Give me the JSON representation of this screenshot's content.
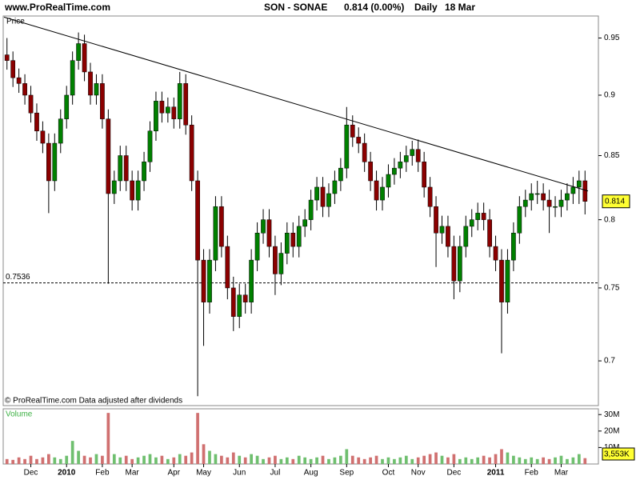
{
  "chart_data": {
    "type": "candlestick",
    "site": "www.ProRealTime.com",
    "title": "SON - SONAE",
    "quote": "0.814 (0.00%)",
    "period": "Daily",
    "date": "18 Mar",
    "panel_label": "Price",
    "footnote": "© ProRealTime.com  Data adjusted after dividends",
    "log_scale": true,
    "up_color": "#008000",
    "down_color": "#8b0000",
    "categories": [
      null,
      null,
      null,
      null,
      "Dec",
      null,
      null,
      null,
      null,
      null,
      "2010",
      null,
      null,
      null,
      null,
      null,
      "Feb",
      null,
      null,
      null,
      null,
      "Mar",
      null,
      null,
      null,
      null,
      null,
      null,
      "Apr",
      null,
      null,
      null,
      null,
      "May",
      null,
      null,
      null,
      null,
      null,
      "Jun",
      null,
      null,
      null,
      null,
      null,
      "Jul",
      null,
      null,
      null,
      null,
      null,
      "Aug",
      null,
      null,
      null,
      null,
      null,
      "Sep",
      null,
      null,
      null,
      null,
      null,
      null,
      "Oct",
      null,
      null,
      null,
      null,
      "Nov",
      null,
      null,
      null,
      null,
      null,
      "Dec",
      null,
      null,
      null,
      null,
      null,
      null,
      "2011",
      null,
      null,
      null,
      null,
      null,
      "Feb",
      null,
      null,
      null,
      null,
      "Mar",
      null,
      null,
      null,
      null
    ],
    "open": [
      0.935,
      0.93,
      0.915,
      0.91,
      0.9,
      0.885,
      0.87,
      0.86,
      0.83,
      0.86,
      0.88,
      0.9,
      0.93,
      0.945,
      0.92,
      0.9,
      0.91,
      0.88,
      0.82,
      0.83,
      0.85,
      0.83,
      0.815,
      0.83,
      0.845,
      0.87,
      0.895,
      0.885,
      0.89,
      0.88,
      0.91,
      0.875,
      0.83,
      0.77,
      0.74,
      0.77,
      0.81,
      0.78,
      0.75,
      0.73,
      0.745,
      0.74,
      0.77,
      0.79,
      0.8,
      0.78,
      0.76,
      0.775,
      0.79,
      0.78,
      0.795,
      0.8,
      0.815,
      0.825,
      0.81,
      0.82,
      0.83,
      0.84,
      0.875,
      0.865,
      0.86,
      0.845,
      0.83,
      0.815,
      0.825,
      0.835,
      0.84,
      0.845,
      0.85,
      0.855,
      0.845,
      0.825,
      0.81,
      0.79,
      0.795,
      0.78,
      0.755,
      0.78,
      0.795,
      0.8,
      0.805,
      0.8,
      0.78,
      0.77,
      0.74,
      0.77,
      0.79,
      0.81,
      0.815,
      0.82,
      0.82,
      0.815,
      0.81,
      0.81,
      0.815,
      0.82,
      0.825,
      0.83
    ],
    "high": [
      0.95,
      0.938,
      0.923,
      0.918,
      0.908,
      0.893,
      0.878,
      0.868,
      0.868,
      0.888,
      0.908,
      0.938,
      0.955,
      0.953,
      0.928,
      0.918,
      0.918,
      0.888,
      0.838,
      0.858,
      0.858,
      0.838,
      0.838,
      0.853,
      0.878,
      0.903,
      0.903,
      0.898,
      0.898,
      0.92,
      0.918,
      0.883,
      0.838,
      0.778,
      0.778,
      0.818,
      0.818,
      0.788,
      0.758,
      0.753,
      0.753,
      0.778,
      0.798,
      0.808,
      0.808,
      0.788,
      0.783,
      0.798,
      0.798,
      0.803,
      0.808,
      0.823,
      0.833,
      0.833,
      0.828,
      0.838,
      0.848,
      0.89,
      0.883,
      0.873,
      0.868,
      0.853,
      0.838,
      0.833,
      0.843,
      0.848,
      0.853,
      0.858,
      0.862,
      0.863,
      0.853,
      0.833,
      0.818,
      0.803,
      0.803,
      0.788,
      0.788,
      0.803,
      0.808,
      0.813,
      0.813,
      0.808,
      0.788,
      0.778,
      0.778,
      0.798,
      0.818,
      0.823,
      0.828,
      0.83,
      0.828,
      0.823,
      0.818,
      0.823,
      0.828,
      0.833,
      0.838,
      0.838
    ],
    "low": [
      0.922,
      0.907,
      0.902,
      0.892,
      0.877,
      0.862,
      0.852,
      0.805,
      0.822,
      0.852,
      0.872,
      0.892,
      0.922,
      0.912,
      0.892,
      0.892,
      0.872,
      0.753,
      0.812,
      0.822,
      0.822,
      0.807,
      0.807,
      0.822,
      0.837,
      0.862,
      0.877,
      0.877,
      0.872,
      0.872,
      0.867,
      0.822,
      0.677,
      0.71,
      0.732,
      0.762,
      0.772,
      0.742,
      0.72,
      0.722,
      0.732,
      0.732,
      0.762,
      0.782,
      0.772,
      0.745,
      0.752,
      0.767,
      0.772,
      0.772,
      0.787,
      0.792,
      0.807,
      0.802,
      0.802,
      0.812,
      0.822,
      0.832,
      0.857,
      0.852,
      0.837,
      0.822,
      0.807,
      0.807,
      0.817,
      0.827,
      0.832,
      0.837,
      0.842,
      0.837,
      0.817,
      0.802,
      0.765,
      0.782,
      0.772,
      0.742,
      0.747,
      0.772,
      0.787,
      0.792,
      0.792,
      0.772,
      0.762,
      0.705,
      0.732,
      0.762,
      0.782,
      0.802,
      0.807,
      0.812,
      0.807,
      0.79,
      0.802,
      0.802,
      0.807,
      0.812,
      0.812,
      0.804
    ],
    "close": [
      0.93,
      0.915,
      0.91,
      0.9,
      0.885,
      0.87,
      0.86,
      0.83,
      0.86,
      0.88,
      0.9,
      0.93,
      0.945,
      0.92,
      0.9,
      0.91,
      0.88,
      0.82,
      0.83,
      0.85,
      0.83,
      0.815,
      0.83,
      0.845,
      0.87,
      0.895,
      0.885,
      0.89,
      0.88,
      0.91,
      0.875,
      0.83,
      0.77,
      0.74,
      0.77,
      0.81,
      0.78,
      0.75,
      0.73,
      0.745,
      0.74,
      0.77,
      0.79,
      0.8,
      0.78,
      0.76,
      0.775,
      0.79,
      0.78,
      0.795,
      0.8,
      0.815,
      0.825,
      0.81,
      0.82,
      0.83,
      0.84,
      0.875,
      0.865,
      0.86,
      0.845,
      0.83,
      0.815,
      0.825,
      0.835,
      0.84,
      0.845,
      0.85,
      0.855,
      0.845,
      0.825,
      0.81,
      0.79,
      0.795,
      0.78,
      0.755,
      0.78,
      0.795,
      0.8,
      0.805,
      0.8,
      0.78,
      0.77,
      0.74,
      0.77,
      0.79,
      0.81,
      0.815,
      0.82,
      0.82,
      0.815,
      0.81,
      0.81,
      0.815,
      0.82,
      0.825,
      0.83,
      0.814
    ],
    "ylim": [
      0.671,
      0.97
    ],
    "yticks": [
      0.7,
      0.75,
      0.8,
      0.85,
      0.9,
      0.95
    ],
    "trendline": [
      0.969,
      0.822
    ],
    "support_line": 0.7536,
    "volume": {
      "label": "Volume",
      "values": [
        3000000,
        2500000,
        4000000,
        3000000,
        5000000,
        3000000,
        4000000,
        6000000,
        4000000,
        3000000,
        5000000,
        14000000,
        8000000,
        5000000,
        4000000,
        6000000,
        5000000,
        31000000,
        6000000,
        4000000,
        5000000,
        3000000,
        4000000,
        5000000,
        6000000,
        4000000,
        5000000,
        3000000,
        4000000,
        6000000,
        5000000,
        7000000,
        31000000,
        12000000,
        8000000,
        6000000,
        5000000,
        4000000,
        7000000,
        5000000,
        4000000,
        6000000,
        5000000,
        3000000,
        4000000,
        5000000,
        3000000,
        4000000,
        3000000,
        5000000,
        4000000,
        3000000,
        4000000,
        5000000,
        3000000,
        4000000,
        5000000,
        9000000,
        5000000,
        4000000,
        3000000,
        4000000,
        5000000,
        3000000,
        4000000,
        3000000,
        4000000,
        5000000,
        3000000,
        4000000,
        5000000,
        6000000,
        7000000,
        5000000,
        4000000,
        6000000,
        3000000,
        4000000,
        3000000,
        4000000,
        5000000,
        4000000,
        6000000,
        9000000,
        7000000,
        5000000,
        4000000,
        3000000,
        4000000,
        3000000,
        4000000,
        3000000,
        4000000,
        5000000,
        3000000,
        4000000,
        6000000,
        3553000
      ],
      "last_label": "3,553K",
      "ylim": [
        0,
        33500000
      ],
      "yticks": [
        {
          "value": 10000000,
          "label": "10M"
        },
        {
          "value": 20000000,
          "label": "20M"
        },
        {
          "value": 30000000,
          "label": "30M"
        }
      ]
    }
  }
}
